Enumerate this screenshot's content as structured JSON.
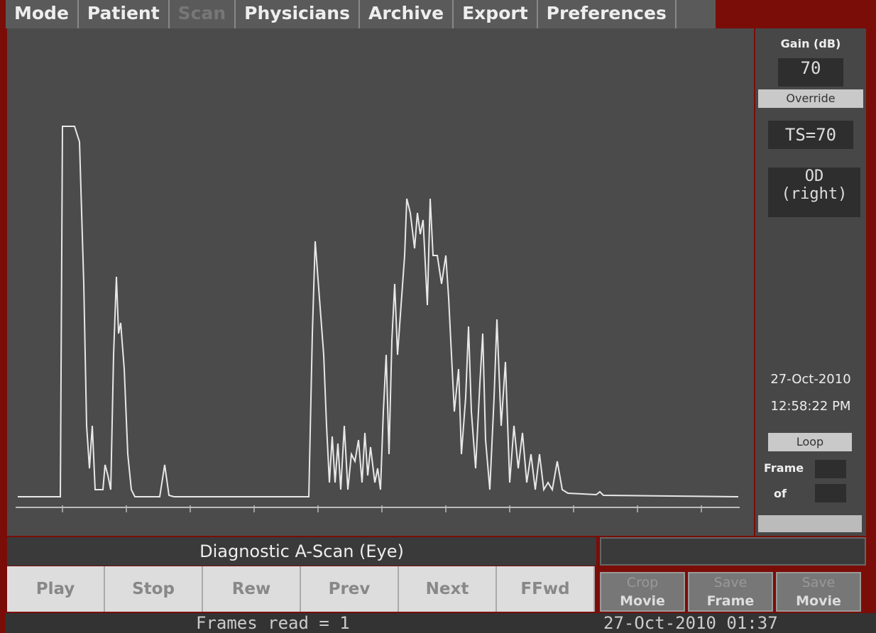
{
  "menu": {
    "items": [
      "Mode",
      "Patient",
      "Scan",
      "Physicians",
      "Archive",
      "Export",
      "Preferences"
    ]
  },
  "panel": {
    "gain_label": "Gain (dB)",
    "gain_value": "70",
    "override": "Override",
    "ts": "TS=70",
    "eye": "OD",
    "eye_side": "(right)",
    "date": "27-Oct-2010",
    "time": "12:58:22 PM",
    "loop": "Loop",
    "frame": "Frame",
    "of": "of"
  },
  "plot": {
    "title": "Diagnostic A-Scan (Eye)"
  },
  "controls": {
    "buttons": [
      "Play",
      "Stop",
      "Rew",
      "Prev",
      "Next",
      "FFwd"
    ]
  },
  "actions": {
    "buttons": [
      [
        "Crop",
        "Movie"
      ],
      [
        "Save",
        "Frame"
      ],
      [
        "Save",
        "Movie"
      ]
    ]
  },
  "status": {
    "frames": "Frames read = 1",
    "timestamp": "27-Oct-2010 01:37"
  }
}
